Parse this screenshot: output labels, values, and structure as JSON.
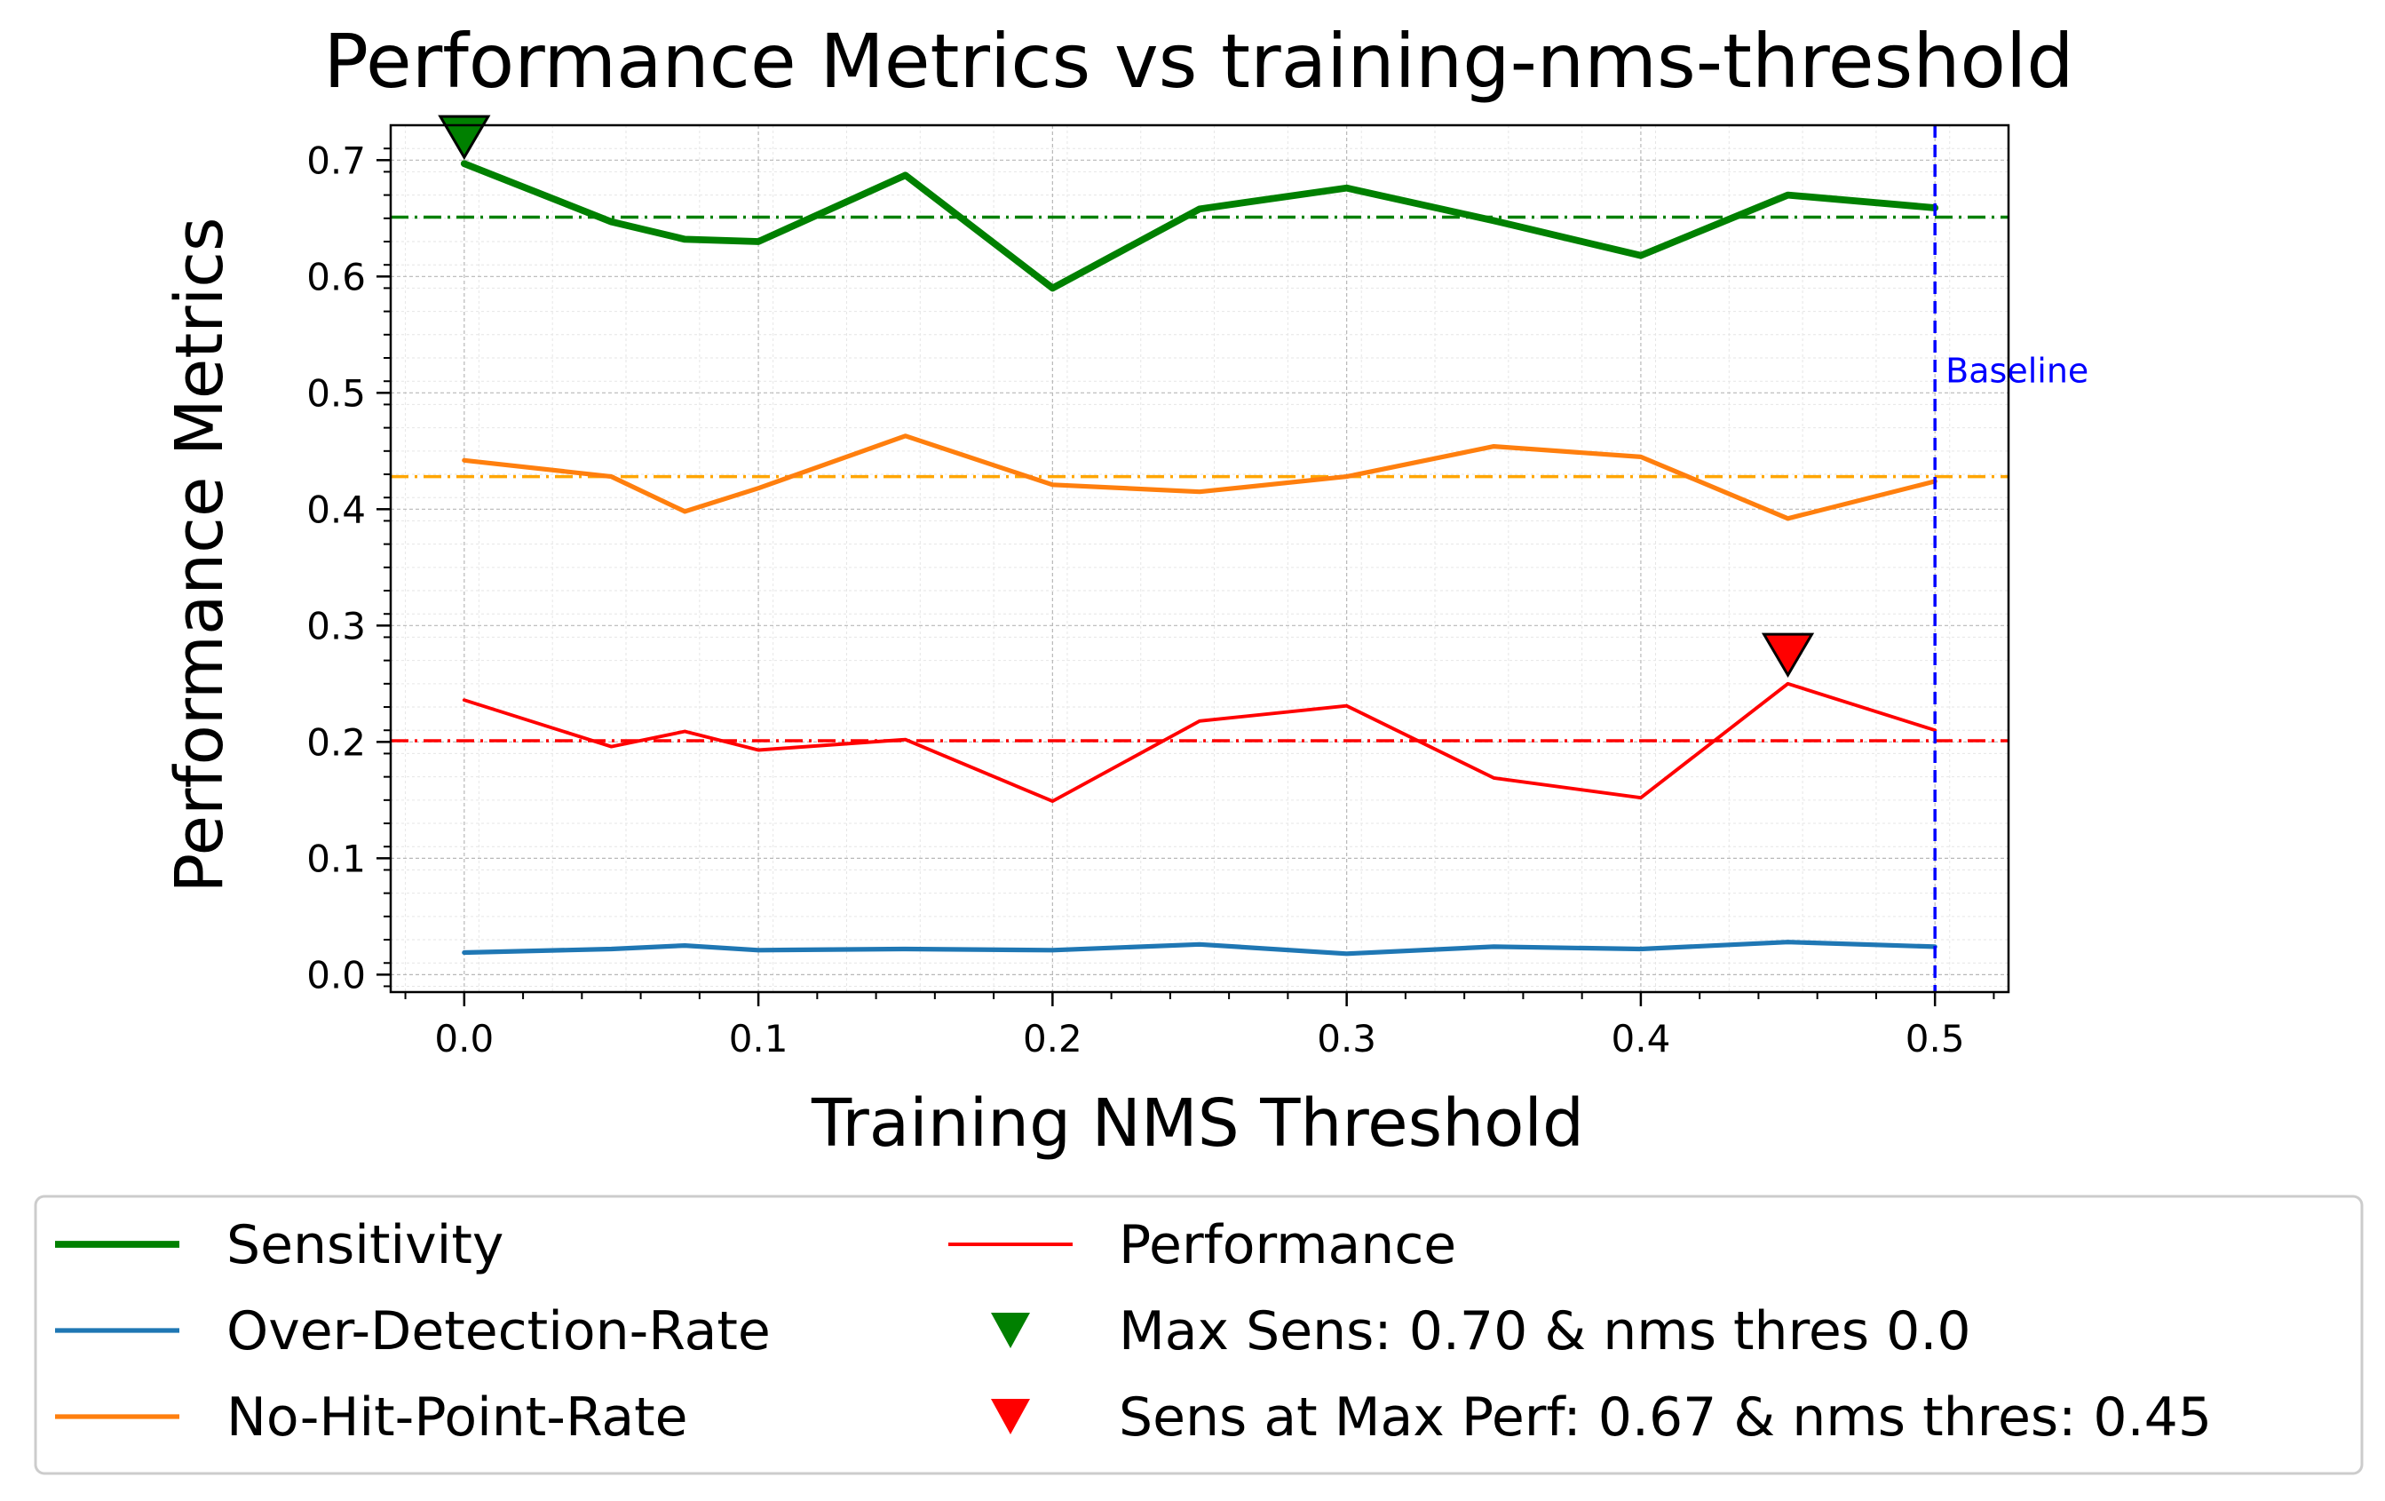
{
  "chart_data": {
    "type": "line",
    "title": "Performance Metrics vs training-nms-threshold",
    "xlabel": "Training NMS Threshold",
    "ylabel": "Performance Metrics",
    "xlim": [
      -0.025,
      0.525
    ],
    "ylim": [
      -0.015,
      0.73
    ],
    "xticks": [
      0.0,
      0.1,
      0.2,
      0.3,
      0.4,
      0.5
    ],
    "xtick_labels": [
      "0.0",
      "0.1",
      "0.2",
      "0.3",
      "0.4",
      "0.5"
    ],
    "yticks": [
      0.0,
      0.1,
      0.2,
      0.3,
      0.4,
      0.5,
      0.6,
      0.7
    ],
    "ytick_labels": [
      "0.0",
      "0.1",
      "0.2",
      "0.3",
      "0.4",
      "0.5",
      "0.6",
      "0.7"
    ],
    "grid": true,
    "x": [
      0.0,
      0.05,
      0.075,
      0.1,
      0.15,
      0.2,
      0.25,
      0.3,
      0.35,
      0.4,
      0.45,
      0.5
    ],
    "series": [
      {
        "name": "Sensitivity",
        "color": "#008000",
        "width": 3,
        "values": [
          0.697,
          0.647,
          0.632,
          0.63,
          0.687,
          0.59,
          0.658,
          0.676,
          0.648,
          0.618,
          0.67,
          0.659
        ]
      },
      {
        "name": "Over-Detection-Rate",
        "color": "#1f77b4",
        "width": 2,
        "values": [
          0.019,
          0.022,
          0.025,
          0.021,
          0.022,
          0.021,
          0.026,
          0.018,
          0.024,
          0.022,
          0.028,
          0.024
        ]
      },
      {
        "name": "No-Hit-Point-Rate",
        "color": "#ff7f0e",
        "width": 2,
        "values": [
          0.442,
          0.428,
          0.398,
          0.418,
          0.463,
          0.421,
          0.415,
          0.428,
          0.454,
          0.445,
          0.392,
          0.424
        ]
      },
      {
        "name": "Performance",
        "color": "#ff0000",
        "width": 1.5,
        "values": [
          0.236,
          0.196,
          0.209,
          0.193,
          0.202,
          0.149,
          0.218,
          0.231,
          0.169,
          0.152,
          0.25,
          0.21
        ]
      }
    ],
    "hlines": [
      {
        "y": 0.651,
        "color": "#008000",
        "style": "dashdot"
      },
      {
        "y": 0.428,
        "color": "#ffa500",
        "style": "dashdot"
      },
      {
        "y": 0.201,
        "color": "#ff0000",
        "style": "dashdot"
      }
    ],
    "vline": {
      "x": 0.5,
      "color": "#0000ff",
      "style": "dashed",
      "label": "Baseline"
    },
    "markers": [
      {
        "name": "Max Sens: 0.70 & nms thres 0.0",
        "x": 0.0,
        "y": 0.72,
        "color": "#008000",
        "shape": "triangle-down"
      },
      {
        "name": "Sens at Max Perf: 0.67 & nms thres: 0.45",
        "x": 0.45,
        "y": 0.275,
        "color": "#ff0000",
        "shape": "triangle-down"
      }
    ],
    "legend": {
      "position": "bottom",
      "columns": 2,
      "entries": [
        {
          "label": "Sensitivity",
          "kind": "line",
          "color": "#008000",
          "width": 3
        },
        {
          "label": "Over-Detection-Rate",
          "kind": "line",
          "color": "#1f77b4",
          "width": 2
        },
        {
          "label": "No-Hit-Point-Rate",
          "kind": "line",
          "color": "#ff7f0e",
          "width": 2
        },
        {
          "label": "Performance",
          "kind": "line",
          "color": "#ff0000",
          "width": 1.5
        },
        {
          "label": "Max Sens: 0.70 & nms thres 0.0",
          "kind": "marker",
          "color": "#008000"
        },
        {
          "label": "Sens at Max Perf: 0.67 & nms thres: 0.45",
          "kind": "marker",
          "color": "#ff0000"
        }
      ]
    }
  }
}
